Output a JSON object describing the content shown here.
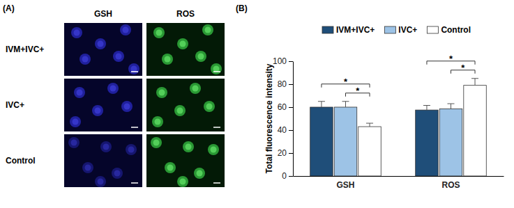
{
  "panel_a": {
    "label": "(A)",
    "columns": [
      "GSH",
      "ROS"
    ],
    "rows": [
      "IVM+IVC+",
      "IVC+",
      "Control"
    ]
  },
  "panel_b_label": "(B)",
  "chart_data": {
    "type": "bar",
    "y_label": "Total fluorescence intensity",
    "categories": [
      "GSH",
      "ROS"
    ],
    "series": [
      {
        "name": "IVM+IVC+",
        "color": "#1f4e79",
        "values": [
          60,
          57.5
        ],
        "errors": [
          5,
          4
        ]
      },
      {
        "name": "IVC+",
        "color": "#9dc3e6",
        "values": [
          60,
          58.5
        ],
        "errors": [
          5,
          4.5
        ]
      },
      {
        "name": "Control",
        "color": "#ffffff",
        "values": [
          43,
          79
        ],
        "errors": [
          3,
          6
        ]
      }
    ],
    "ylim": [
      0,
      100
    ],
    "yticks": [
      0,
      20,
      40,
      60,
      80,
      100
    ],
    "grid": false,
    "legend": "top",
    "annotations": [
      {
        "text": "*",
        "category": 0,
        "series": [
          0,
          2
        ]
      },
      {
        "text": "*",
        "category": 0,
        "series": [
          1,
          2
        ]
      },
      {
        "text": "*",
        "category": 1,
        "series": [
          0,
          2
        ]
      },
      {
        "text": "*",
        "category": 1,
        "series": [
          1,
          2
        ]
      }
    ]
  }
}
